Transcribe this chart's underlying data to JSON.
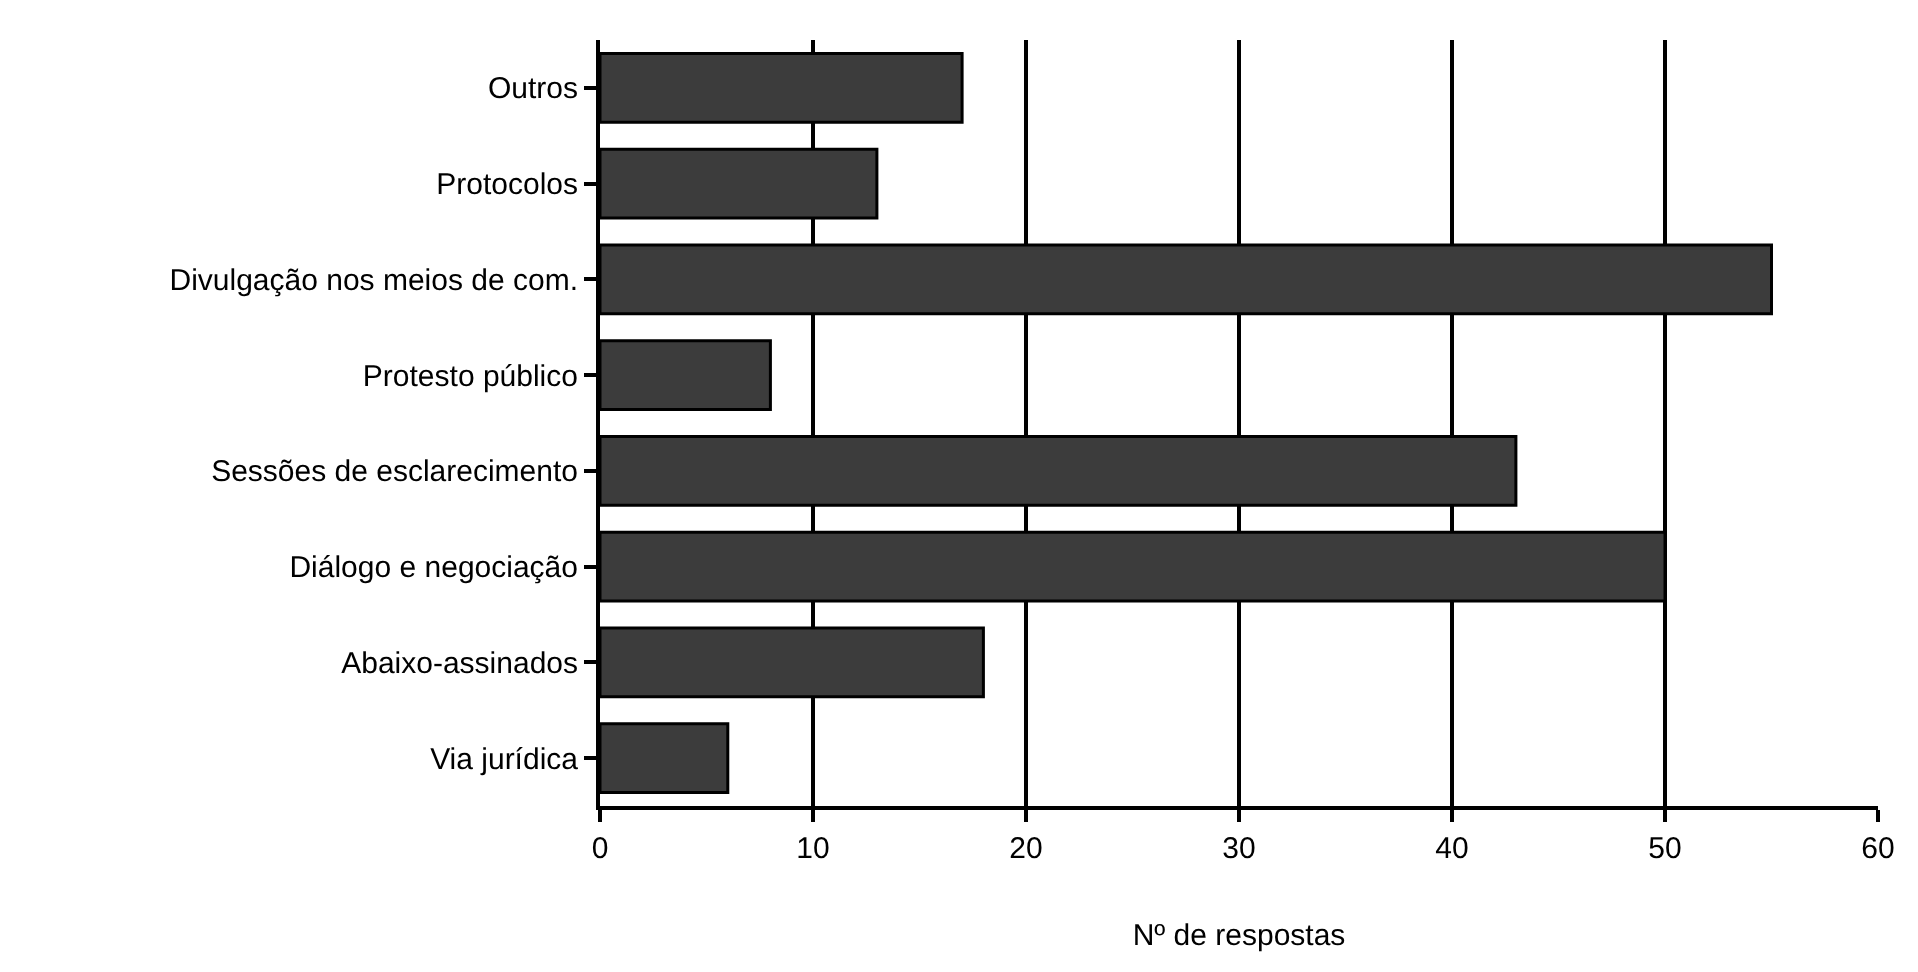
{
  "chart_data": {
    "type": "bar",
    "orientation": "horizontal",
    "xlabel": "Nº de respostas",
    "categories": [
      "Outros",
      "Protocolos",
      "Divulgação nos meios de com.",
      "Protesto público",
      "Sessões de esclarecimento",
      "Diálogo e negociação",
      "Abaixo-assinados",
      "Via jurídica"
    ],
    "values": [
      17,
      13,
      55,
      8,
      43,
      50,
      18,
      6
    ],
    "color": "#3c3c3c",
    "xlim": [
      0,
      60
    ],
    "xticks": [
      0,
      10,
      20,
      30,
      40,
      50,
      60
    ],
    "grid": "x"
  }
}
